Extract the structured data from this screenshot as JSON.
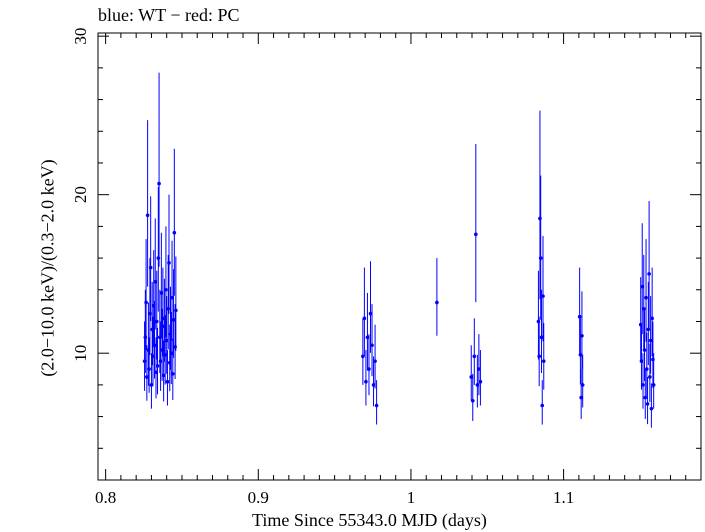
{
  "chart_data": {
    "type": "scatter",
    "title": "blue: WT − red: PC",
    "xlabel": "Time Since 55343.0 MJD (days)",
    "ylabel": "(2.0−10.0 keV)/(0.3−2.0 keV)",
    "xlim": [
      0.795,
      1.19
    ],
    "ylim": [
      2,
      30.2
    ],
    "xticks": [
      "0.8",
      "0.9",
      "1",
      "1.1"
    ],
    "yticks": [
      "10",
      "20",
      "30"
    ],
    "xtick_values": [
      0.8,
      0.9,
      1.0,
      1.1
    ],
    "ytick_values": [
      10,
      20,
      30
    ],
    "series_colors": {
      "WT": "#0000ff",
      "PC": "#ff0000"
    },
    "series": [
      {
        "name": "WT",
        "points": [
          [
            0.8255,
            9.5,
            2.5
          ],
          [
            0.826,
            11.0,
            3.0
          ],
          [
            0.8265,
            13.2,
            4.0
          ],
          [
            0.827,
            8.5,
            2.0
          ],
          [
            0.8275,
            18.7,
            6.0
          ],
          [
            0.828,
            10.2,
            3.0
          ],
          [
            0.8285,
            9.0,
            2.0
          ],
          [
            0.829,
            12.5,
            3.5
          ],
          [
            0.8295,
            15.4,
            4.5
          ],
          [
            0.83,
            8.0,
            2.0
          ],
          [
            0.8305,
            11.5,
            3.0
          ],
          [
            0.831,
            9.8,
            2.5
          ],
          [
            0.8315,
            13.0,
            3.5
          ],
          [
            0.832,
            10.5,
            2.8
          ],
          [
            0.8325,
            14.5,
            4.0
          ],
          [
            0.833,
            8.8,
            2.2
          ],
          [
            0.8335,
            12.0,
            3.2
          ],
          [
            0.834,
            9.2,
            2.4
          ],
          [
            0.8345,
            16.0,
            4.5
          ],
          [
            0.835,
            20.7,
            7.0
          ],
          [
            0.8355,
            11.0,
            3.0
          ],
          [
            0.836,
            9.5,
            2.5
          ],
          [
            0.8365,
            13.8,
            3.8
          ],
          [
            0.837,
            10.2,
            2.6
          ],
          [
            0.8375,
            12.2,
            3.2
          ],
          [
            0.838,
            8.6,
            2.2
          ],
          [
            0.8385,
            11.7,
            3.0
          ],
          [
            0.839,
            9.9,
            2.5
          ],
          [
            0.8395,
            14.0,
            4.0
          ],
          [
            0.84,
            10.8,
            2.8
          ],
          [
            0.8405,
            8.2,
            2.0
          ],
          [
            0.841,
            12.8,
            3.4
          ],
          [
            0.8415,
            15.7,
            4.3
          ],
          [
            0.842,
            9.4,
            2.4
          ],
          [
            0.8425,
            11.2,
            3.0
          ],
          [
            0.843,
            10.0,
            2.6
          ],
          [
            0.8435,
            13.5,
            3.6
          ],
          [
            0.844,
            8.7,
            2.2
          ],
          [
            0.8445,
            12.1,
            3.2
          ],
          [
            0.845,
            17.6,
            5.3
          ],
          [
            0.8455,
            10.4,
            2.7
          ],
          [
            0.846,
            12.7,
            3.4
          ],
          [
            0.9685,
            9.8,
            2.4
          ],
          [
            0.9695,
            12.2,
            3.2
          ],
          [
            0.9705,
            8.2,
            2.0
          ],
          [
            0.9715,
            11.0,
            2.8
          ],
          [
            0.9725,
            9.0,
            2.2
          ],
          [
            0.9735,
            12.5,
            3.3
          ],
          [
            0.9745,
            10.5,
            2.6
          ],
          [
            0.9755,
            8.0,
            1.8
          ],
          [
            0.9765,
            9.5,
            2.3
          ],
          [
            0.9775,
            6.7,
            1.6
          ],
          [
            1.017,
            13.2,
            2.8
          ],
          [
            1.0395,
            8.5,
            2.0
          ],
          [
            1.0405,
            7.0,
            1.7
          ],
          [
            1.0415,
            9.8,
            2.4
          ],
          [
            1.0425,
            17.5,
            5.7
          ],
          [
            1.0435,
            8.0,
            1.9
          ],
          [
            1.0445,
            9.0,
            2.2
          ],
          [
            1.0455,
            8.2,
            2.0
          ],
          [
            1.0835,
            12.0,
            3.2
          ],
          [
            1.084,
            9.8,
            2.5
          ],
          [
            1.0845,
            18.5,
            6.8
          ],
          [
            1.085,
            16.0,
            5.2
          ],
          [
            1.0855,
            11.0,
            3.0
          ],
          [
            1.086,
            6.7,
            1.6
          ],
          [
            1.0865,
            13.6,
            3.8
          ],
          [
            1.087,
            9.5,
            2.4
          ],
          [
            1.1105,
            12.3,
            3.1
          ],
          [
            1.111,
            9.9,
            2.5
          ],
          [
            1.1115,
            7.2,
            1.8
          ],
          [
            1.112,
            11.1,
            2.8
          ],
          [
            1.1125,
            8.0,
            1.9
          ],
          [
            1.1505,
            11.8,
            3.0
          ],
          [
            1.151,
            9.5,
            2.4
          ],
          [
            1.1515,
            14.2,
            4.0
          ],
          [
            1.152,
            8.0,
            2.0
          ],
          [
            1.1525,
            12.8,
            3.4
          ],
          [
            1.153,
            10.2,
            2.6
          ],
          [
            1.1535,
            7.2,
            1.8
          ],
          [
            1.154,
            13.5,
            3.7
          ],
          [
            1.1545,
            9.0,
            2.3
          ],
          [
            1.155,
            6.8,
            1.7
          ],
          [
            1.1555,
            11.5,
            3.0
          ],
          [
            1.156,
            15.0,
            4.6
          ],
          [
            1.1565,
            8.5,
            2.1
          ],
          [
            1.157,
            10.8,
            2.8
          ],
          [
            1.1575,
            6.5,
            1.6
          ],
          [
            1.158,
            12.2,
            3.2
          ],
          [
            1.1585,
            9.6,
            2.4
          ],
          [
            1.159,
            8.0,
            2.0
          ]
        ]
      }
    ]
  }
}
